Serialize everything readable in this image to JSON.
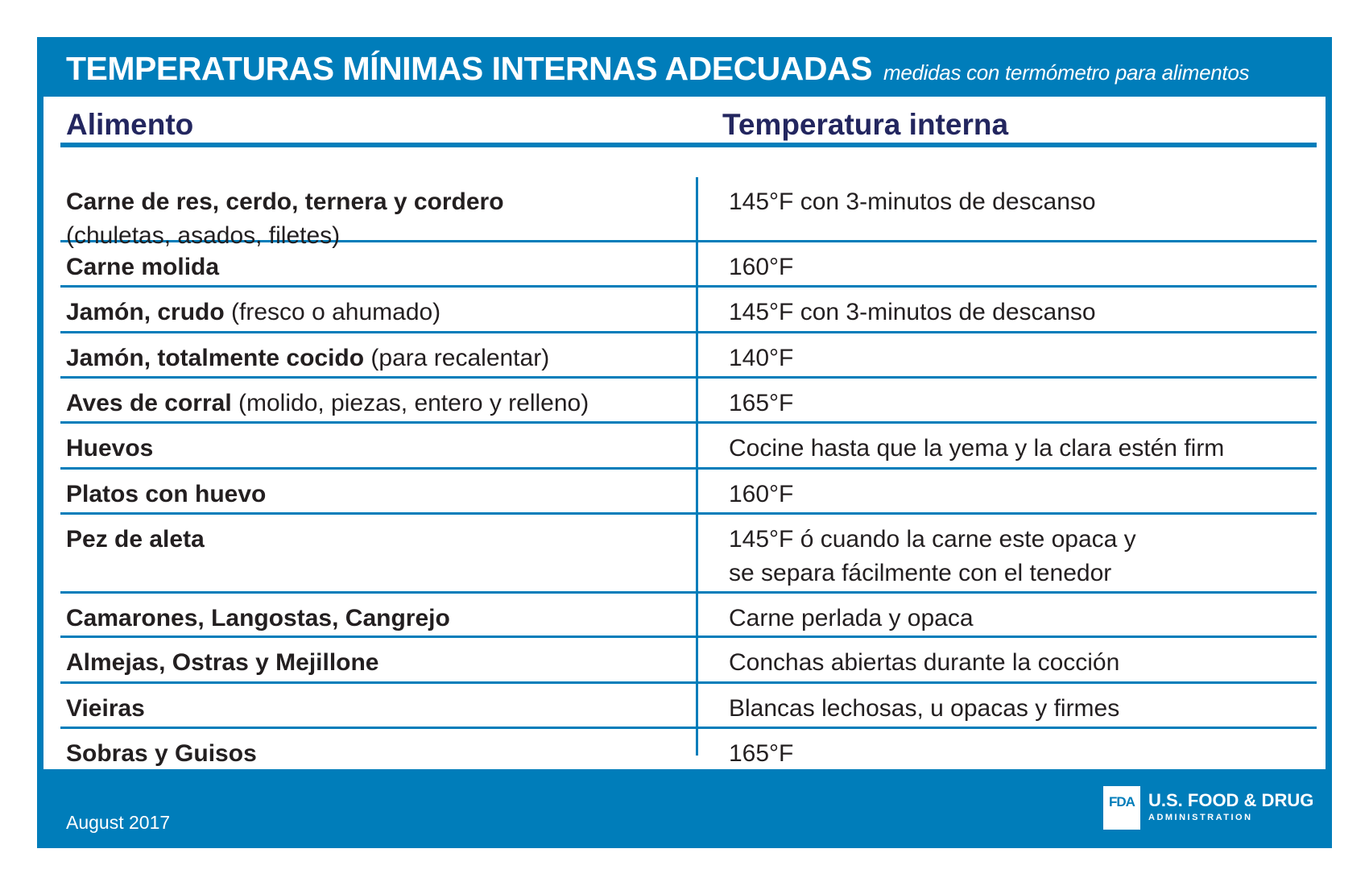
{
  "title": "TEMPERATURAS MÍNIMAS INTERNAS ADECUADAS",
  "subtitle": "medidas con termómetro para alimentos",
  "headers": {
    "food": "Alimento",
    "temp": "Temperatura interna"
  },
  "rows": [
    {
      "food_bold": "Carne de res, cerdo, ternera y cordero",
      "food_note": "(chuletas, asados, filetes)",
      "temp": "145°F con 3-minutos de descanso",
      "temp2": ""
    },
    {
      "food_bold": "Carne molida",
      "food_note": "",
      "temp": "160°F",
      "temp2": ""
    },
    {
      "food_bold": "Jamón, crudo",
      "food_note": "(fresco o ahumado)",
      "temp": "145°F con 3-minutos de descanso",
      "temp2": ""
    },
    {
      "food_bold": "Jamón, totalmente cocido",
      "food_note": "(para recalentar)",
      "temp": "140°F",
      "temp2": ""
    },
    {
      "food_bold": "Aves de corral",
      "food_note": "(molido, piezas, entero y relleno)",
      "temp": "165°F",
      "temp2": ""
    },
    {
      "food_bold": "Huevos",
      "food_note": "",
      "temp": "Cocine hasta que la yema y la clara estén firm",
      "temp2": ""
    },
    {
      "food_bold": "Platos con huevo",
      "food_note": "",
      "temp": "160°F",
      "temp2": ""
    },
    {
      "food_bold": "Pez de aleta",
      "food_note": "",
      "temp": "145°F ó cuando la carne este opaca y",
      "temp2": "se separa fácilmente con el tenedor"
    },
    {
      "food_bold": "Camarones, Langostas, Cangrejo",
      "food_note": "",
      "temp": "Carne perlada y opaca",
      "temp2": ""
    },
    {
      "food_bold": "Almejas, Ostras y Mejillone",
      "food_note": "",
      "temp": "Conchas abiertas durante la cocción",
      "temp2": ""
    },
    {
      "food_bold": "Vieiras",
      "food_note": "",
      "temp": "Blancas lechosas, u opacas y firmes",
      "temp2": ""
    },
    {
      "food_bold": "Sobras y Guisos",
      "food_note": "",
      "temp": "165°F",
      "temp2": ""
    }
  ],
  "footer": {
    "date": "August 2017"
  },
  "logo": {
    "mark": "FDA",
    "line1": "U.S. FOOD & DRUG",
    "line2": "ADMINISTRATION"
  },
  "colors": {
    "brand_blue": "#007dba",
    "header_navy": "#23265f",
    "text": "#231f20"
  }
}
